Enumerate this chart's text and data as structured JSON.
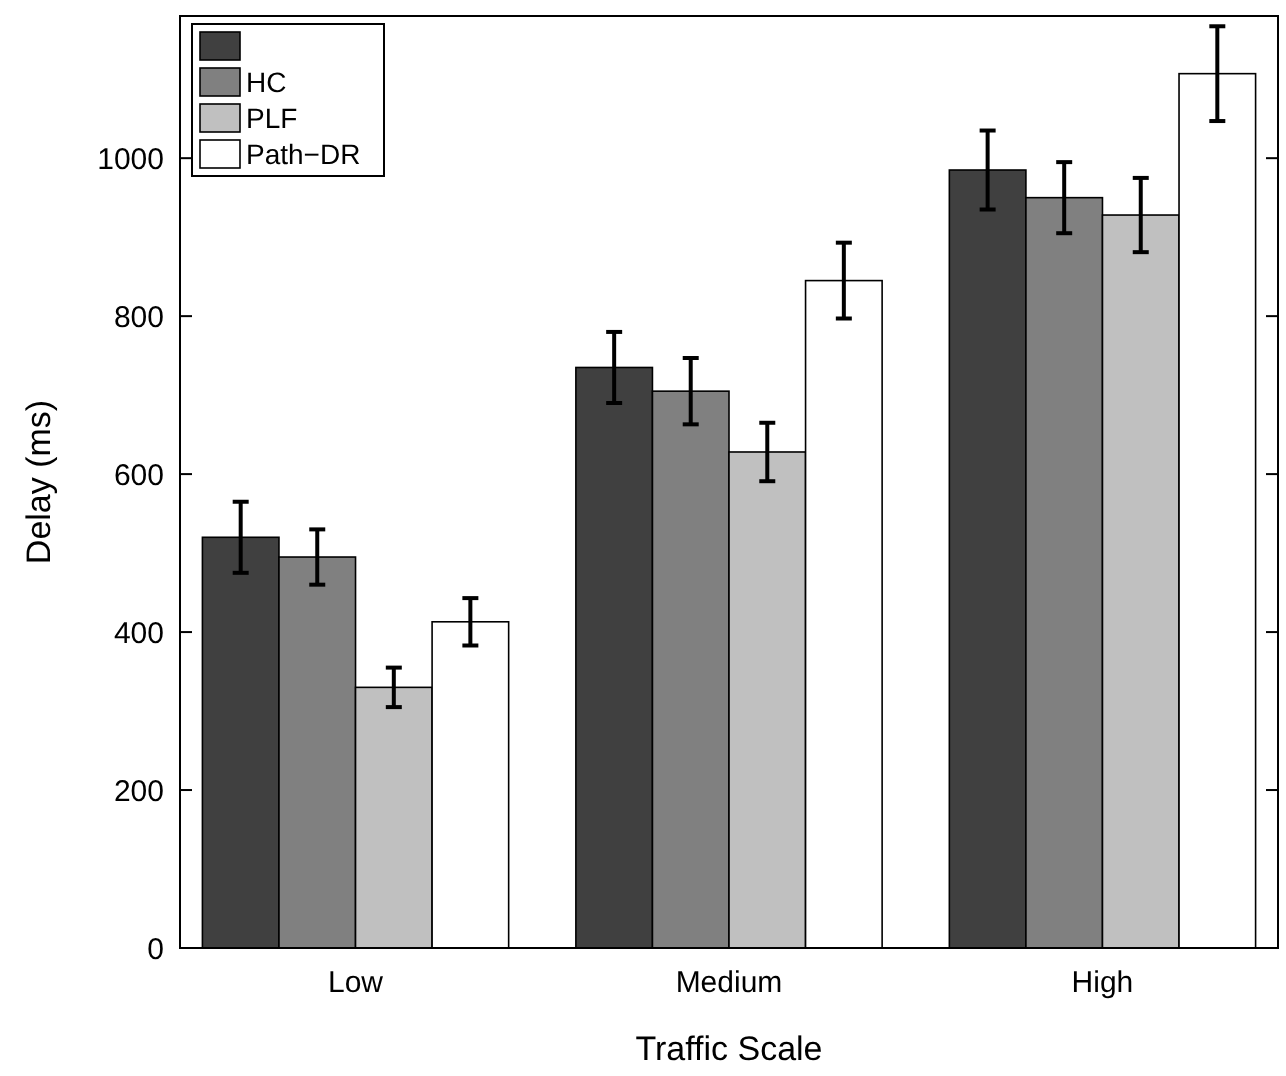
{
  "chart_data": {
    "type": "bar",
    "xlabel": "Traffic Scale",
    "ylabel": "Delay (ms)",
    "categories": [
      "Low",
      "Medium",
      "High"
    ],
    "series": [
      {
        "color": "#404040",
        "values": [
          520,
          735,
          985
        ],
        "errors": [
          45,
          45,
          50
        ]
      },
      {
        "name": "HC",
        "color": "#808080",
        "values": [
          495,
          705,
          950
        ],
        "errors": [
          35,
          42,
          45
        ]
      },
      {
        "name": "PLF",
        "color": "#c0c0c0",
        "values": [
          330,
          628,
          928
        ],
        "errors": [
          25,
          37,
          47
        ]
      },
      {
        "name": "Path−DR",
        "color": "#ffffff",
        "values": [
          413,
          845,
          1107
        ],
        "errors": [
          30,
          48,
          60
        ]
      }
    ],
    "ylim": [
      0,
      1180
    ],
    "yticks": [
      0,
      200,
      400,
      600,
      800,
      1000
    ],
    "legend": "top left"
  }
}
